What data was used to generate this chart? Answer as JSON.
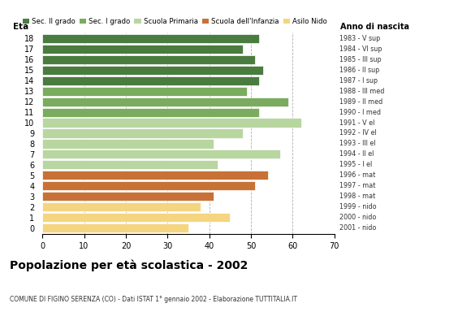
{
  "ages": [
    18,
    17,
    16,
    15,
    14,
    13,
    12,
    11,
    10,
    9,
    8,
    7,
    6,
    5,
    4,
    3,
    2,
    1,
    0
  ],
  "values": [
    52,
    48,
    51,
    53,
    52,
    49,
    59,
    52,
    62,
    48,
    41,
    57,
    42,
    54,
    51,
    41,
    38,
    45,
    35
  ],
  "anno_nascita": [
    "1983 - V sup",
    "1984 - VI sup",
    "1985 - III sup",
    "1986 - II sup",
    "1987 - I sup",
    "1988 - III med",
    "1989 - II med",
    "1990 - I med",
    "1991 - V el",
    "1992 - IV el",
    "1993 - III el",
    "1994 - II el",
    "1995 - I el",
    "1996 - mat",
    "1997 - mat",
    "1998 - mat",
    "1999 - nido",
    "2000 - nido",
    "2001 - nido"
  ],
  "colors": [
    "#4a7c3f",
    "#4a7c3f",
    "#4a7c3f",
    "#4a7c3f",
    "#4a7c3f",
    "#7aab5e",
    "#7aab5e",
    "#7aab5e",
    "#b8d6a0",
    "#b8d6a0",
    "#b8d6a0",
    "#b8d6a0",
    "#b8d6a0",
    "#c87137",
    "#c87137",
    "#c87137",
    "#f5d580",
    "#f5d580",
    "#f5d580"
  ],
  "legend_labels": [
    "Sec. II grado",
    "Sec. I grado",
    "Scuola Primaria",
    "Scuola dell'Infanzia",
    "Asilo Nido"
  ],
  "legend_colors": [
    "#4a7c3f",
    "#7aab5e",
    "#b8d6a0",
    "#c87137",
    "#f5d580"
  ],
  "title": "Popolazione per età scolastica - 2002",
  "subtitle": "COMUNE DI FIGINO SERENZA (CO) - Dati ISTAT 1° gennaio 2002 - Elaborazione TUTTITALIA.IT",
  "xlabel_age": "Età",
  "xlabel_anno": "Anno di nascita",
  "xlim": [
    0,
    70
  ],
  "xticks": [
    0,
    10,
    20,
    30,
    40,
    50,
    60,
    70
  ],
  "grid_color": "#b0b0b0",
  "bar_height": 0.85,
  "bg_color": "#ffffff"
}
